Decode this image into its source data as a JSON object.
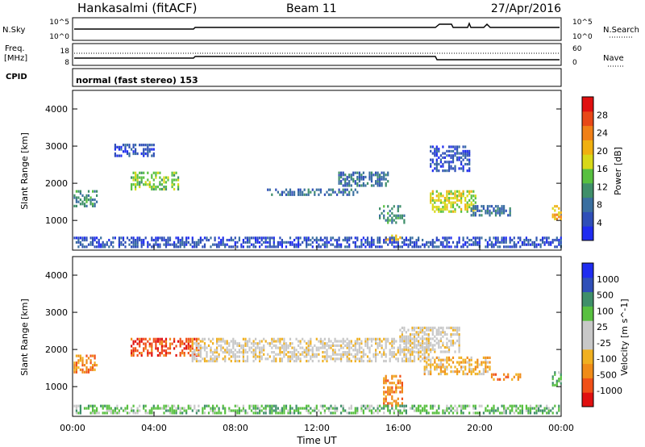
{
  "header": {
    "title": "Hankasalmi (fitACF)",
    "beam": "Beam 11",
    "date": "27/Apr/2016"
  },
  "strip_noise": {
    "left_label": "N.Sky",
    "right_label": "N.Search",
    "left_ticks": [
      "10^5",
      "10^0"
    ],
    "right_ticks": [
      "10^5",
      "10^0"
    ]
  },
  "strip_freq": {
    "left_label_1": "Freq.",
    "left_label_2": "[MHz]",
    "right_label": "Nave",
    "left_ticks": [
      "18",
      "8"
    ],
    "right_ticks": [
      "60",
      "0"
    ]
  },
  "strip_cpid": {
    "left_label": "CPID",
    "text": "normal (fast stereo) 153"
  },
  "chart_data": [
    {
      "type": "heatmap",
      "quantity": "Power",
      "ylabel": "Slant Range [km]",
      "ylim": [
        200,
        4500
      ],
      "yticks": [
        1000,
        2000,
        3000,
        4000
      ],
      "xlim_hours": [
        0,
        24
      ],
      "colorbar": {
        "label": "Power [dB]",
        "ticks": [
          "28",
          "24",
          "20",
          "16",
          "12",
          "8",
          "4"
        ],
        "colors": [
          "#1f2cf0",
          "#2f4fb8",
          "#3a6fa0",
          "#3f8f6a",
          "#58c040",
          "#d8d818",
          "#f0b010",
          "#f08018",
          "#e84818",
          "#e01010"
        ]
      },
      "regions": [
        {
          "t": [
            0.0,
            1.2
          ],
          "r": [
            1350,
            1800
          ],
          "level": 3
        },
        {
          "t": [
            2.8,
            5.2
          ],
          "r": [
            1800,
            2300
          ],
          "level": 4
        },
        {
          "t": [
            2.0,
            4.0
          ],
          "r": [
            2700,
            3050
          ],
          "level": 1
        },
        {
          "t": [
            9.5,
            14.0
          ],
          "r": [
            1650,
            1850
          ],
          "level": 2
        },
        {
          "t": [
            13.0,
            15.5
          ],
          "r": [
            1900,
            2300
          ],
          "level": 2
        },
        {
          "t": [
            15.0,
            16.3
          ],
          "r": [
            900,
            1400
          ],
          "level": 3
        },
        {
          "t": [
            15.3,
            16.1
          ],
          "r": [
            450,
            600
          ],
          "level": 6
        },
        {
          "t": [
            17.5,
            19.8
          ],
          "r": [
            1200,
            1800
          ],
          "level": 5
        },
        {
          "t": [
            17.5,
            19.5
          ],
          "r": [
            2300,
            3000
          ],
          "level": 1
        },
        {
          "t": [
            19.5,
            21.5
          ],
          "r": [
            1100,
            1400
          ],
          "level": 2
        },
        {
          "t": [
            23.5,
            24.0
          ],
          "r": [
            1000,
            1400
          ],
          "level": 6
        },
        {
          "t": [
            0.0,
            24.0
          ],
          "r": [
            250,
            550
          ],
          "level": 1
        }
      ]
    },
    {
      "type": "heatmap",
      "quantity": "Velocity",
      "ylabel": "Slant Range [km]",
      "xlabel": "Time UT",
      "ylim": [
        200,
        4500
      ],
      "yticks": [
        1000,
        2000,
        3000,
        4000
      ],
      "xlim_hours": [
        0,
        24
      ],
      "xticks": [
        "00:00",
        "04:00",
        "08:00",
        "12:00",
        "16:00",
        "20:00",
        "00:00"
      ],
      "colorbar": {
        "label": "Velocity [m s^-1]",
        "ticks": [
          "1000",
          "500",
          "100",
          "25",
          "-25",
          "-100",
          "-500",
          "-1000"
        ],
        "colors": [
          "#e01010",
          "#f05018",
          "#f08c18",
          "#f0b020",
          "#c8c8c8",
          "#c8c8c8",
          "#58c040",
          "#3f8f6a",
          "#2f4fb8",
          "#1f2cf0"
        ]
      },
      "regions": [
        {
          "t": [
            0.0,
            1.2
          ],
          "r": [
            1350,
            1850
          ],
          "level": 2
        },
        {
          "t": [
            2.8,
            6.2
          ],
          "r": [
            1800,
            2300
          ],
          "level": 1
        },
        {
          "t": [
            5.8,
            17.5
          ],
          "r": [
            1650,
            2300
          ],
          "level": 4
        },
        {
          "t": [
            15.2,
            16.2
          ],
          "r": [
            450,
            1300
          ],
          "level": 2
        },
        {
          "t": [
            17.2,
            20.5
          ],
          "r": [
            1300,
            1800
          ],
          "level": 3
        },
        {
          "t": [
            16.0,
            19.0
          ],
          "r": [
            1900,
            2600
          ],
          "level": 4
        },
        {
          "t": [
            20.5,
            22.0
          ],
          "r": [
            1150,
            1350
          ],
          "level": 2
        },
        {
          "t": [
            23.5,
            24.0
          ],
          "r": [
            1000,
            1400
          ],
          "level": 6
        },
        {
          "t": [
            0.0,
            24.0
          ],
          "r": [
            250,
            500
          ],
          "level": 6
        }
      ]
    }
  ]
}
